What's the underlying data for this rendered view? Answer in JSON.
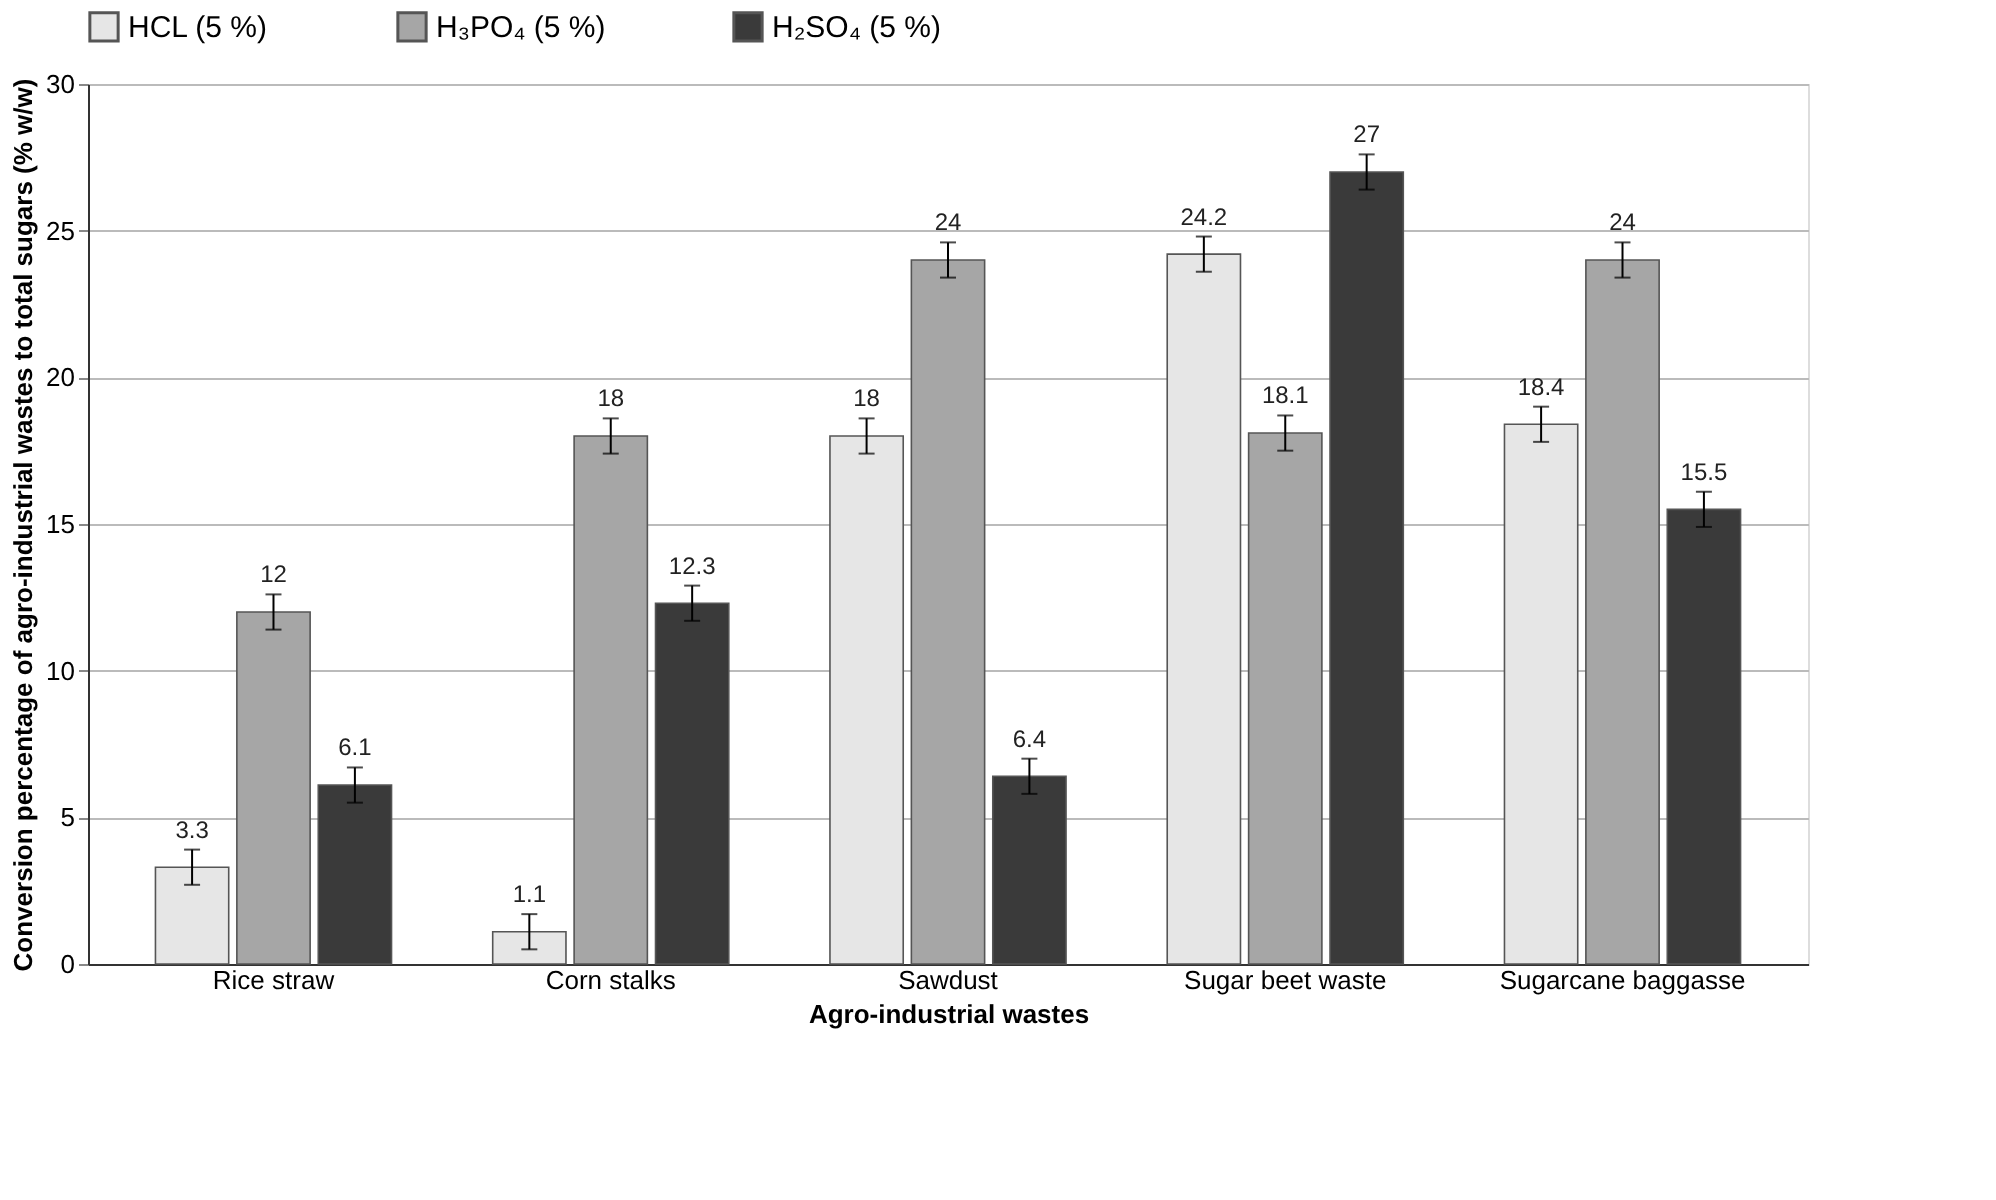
{
  "chart_data": {
    "type": "bar",
    "xlabel": "Agro-industrial wastes",
    "ylabel": "Conversion percentage of agro-industrial wastes to total sugars (% w/w)",
    "categories": [
      "Rice straw",
      "Corn stalks",
      "Sawdust",
      "Sugar beet waste",
      "Sugarcane baggasse"
    ],
    "series": [
      {
        "name": "HCL (5 %)",
        "color": "#e6e6e6",
        "values": [
          3.3,
          1.1,
          18,
          24.2,
          18.4
        ],
        "errors": [
          0.6,
          0.6,
          0.6,
          0.6,
          0.6
        ]
      },
      {
        "name": "H₃PO₄ (5 %)",
        "color": "#a6a6a6",
        "values": [
          12,
          18,
          24,
          18.1,
          24
        ],
        "errors": [
          0.6,
          0.6,
          0.6,
          0.6,
          0.6
        ]
      },
      {
        "name": "H₂SO₄ (5 %)",
        "color": "#3a3a3a",
        "values": [
          6.1,
          12.3,
          6.4,
          27,
          15.5
        ],
        "errors": [
          0.6,
          0.6,
          0.6,
          0.6,
          0.6
        ]
      }
    ],
    "ylim": [
      0,
      30
    ],
    "yticks": [
      0,
      5,
      10,
      15,
      20,
      25,
      30
    ],
    "grid": "y",
    "legend": "top",
    "data_labels": true
  }
}
